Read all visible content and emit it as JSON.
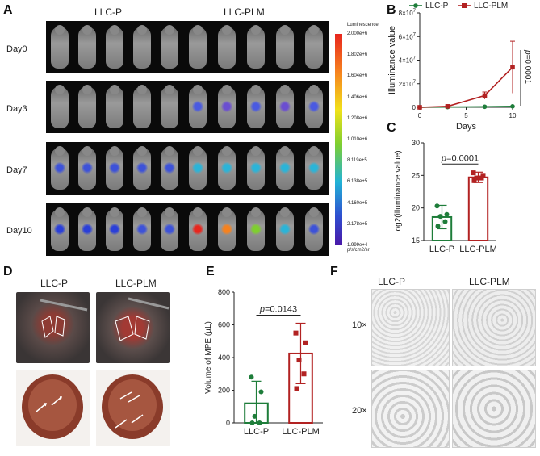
{
  "panelA": {
    "label": "A",
    "group1": "LLC-P",
    "group2": "LLC-PLM",
    "days": [
      "Day0",
      "Day3",
      "Day7",
      "Day10"
    ],
    "colorbar": {
      "title": "Luminescence",
      "ticks": [
        "2.000e+6",
        "1.802e+6",
        "1.604e+6",
        "1.406e+6",
        "1.208e+6",
        "1.010e+6",
        "8.119e+5",
        "6.138e+5",
        "4.160e+5",
        "2.178e+5",
        "1.999e+4"
      ],
      "unit": "p/s/cm2/sr"
    }
  },
  "panelD": {
    "label": "D",
    "group1": "LLC-P",
    "group2": "LLC-PLM"
  },
  "panelF": {
    "label": "F",
    "group1": "LLC-P",
    "group2": "LLC-PLM",
    "rows": [
      "10×",
      "20×"
    ]
  },
  "chart_data": [
    {
      "panel": "B",
      "type": "line",
      "xlabel": "Days",
      "ylabel": "Illuminance value",
      "xticks": [
        "0",
        "5",
        "10"
      ],
      "yticks": [
        "0",
        "2×10^7",
        "4×10^7",
        "6×10^7",
        "8×10^7"
      ],
      "xlim": [
        0,
        10
      ],
      "ylim": [
        0,
        80000000
      ],
      "series": [
        {
          "name": "LLC-P",
          "color": "#1e7d3a",
          "x": [
            0,
            3,
            7,
            10
          ],
          "y": [
            0,
            200000,
            500000,
            800000
          ]
        },
        {
          "name": "LLC-PLM",
          "color": "#b22222",
          "x": [
            0,
            3,
            7,
            10
          ],
          "y": [
            0,
            800000,
            10000000,
            34000000
          ],
          "err": [
            0,
            500000,
            3000000,
            22000000
          ]
        }
      ],
      "annotation": "p=0.0001"
    },
    {
      "panel": "C",
      "type": "bar",
      "ylabel": "log2(illuminance value)",
      "categories": [
        "LLC-P",
        "LLC-PLM"
      ],
      "colors": [
        "#1e7d3a",
        "#b22222"
      ],
      "values": [
        18.6,
        24.7
      ],
      "err": [
        1.8,
        0.8
      ],
      "points": [
        [
          20.3,
          19.0,
          18.7,
          17.9,
          17.2
        ],
        [
          25.4,
          25.0,
          24.6,
          24.6,
          24.2
        ]
      ],
      "yticks": [
        "15",
        "20",
        "25",
        "30"
      ],
      "ylim": [
        15,
        30
      ],
      "annotation": "p=0.0001"
    },
    {
      "panel": "E",
      "type": "bar",
      "ylabel": "Volume of MPE (µL)",
      "categories": [
        "LLC-P",
        "LLC-PLM"
      ],
      "colors": [
        "#1e7d3a",
        "#b22222"
      ],
      "values": [
        120,
        425
      ],
      "err": [
        135,
        185
      ],
      "points": [
        [
          280,
          190,
          40,
          0,
          0
        ],
        [
          550,
          490,
          385,
          300,
          210
        ]
      ],
      "yticks": [
        "0",
        "200",
        "400",
        "600",
        "800"
      ],
      "ylim": [
        0,
        800
      ],
      "annotation": "p=0.0143"
    }
  ],
  "labels": {
    "B": "B",
    "C": "C",
    "E": "E"
  },
  "colors": {
    "green": "#1e7d3a",
    "red": "#b22222"
  }
}
